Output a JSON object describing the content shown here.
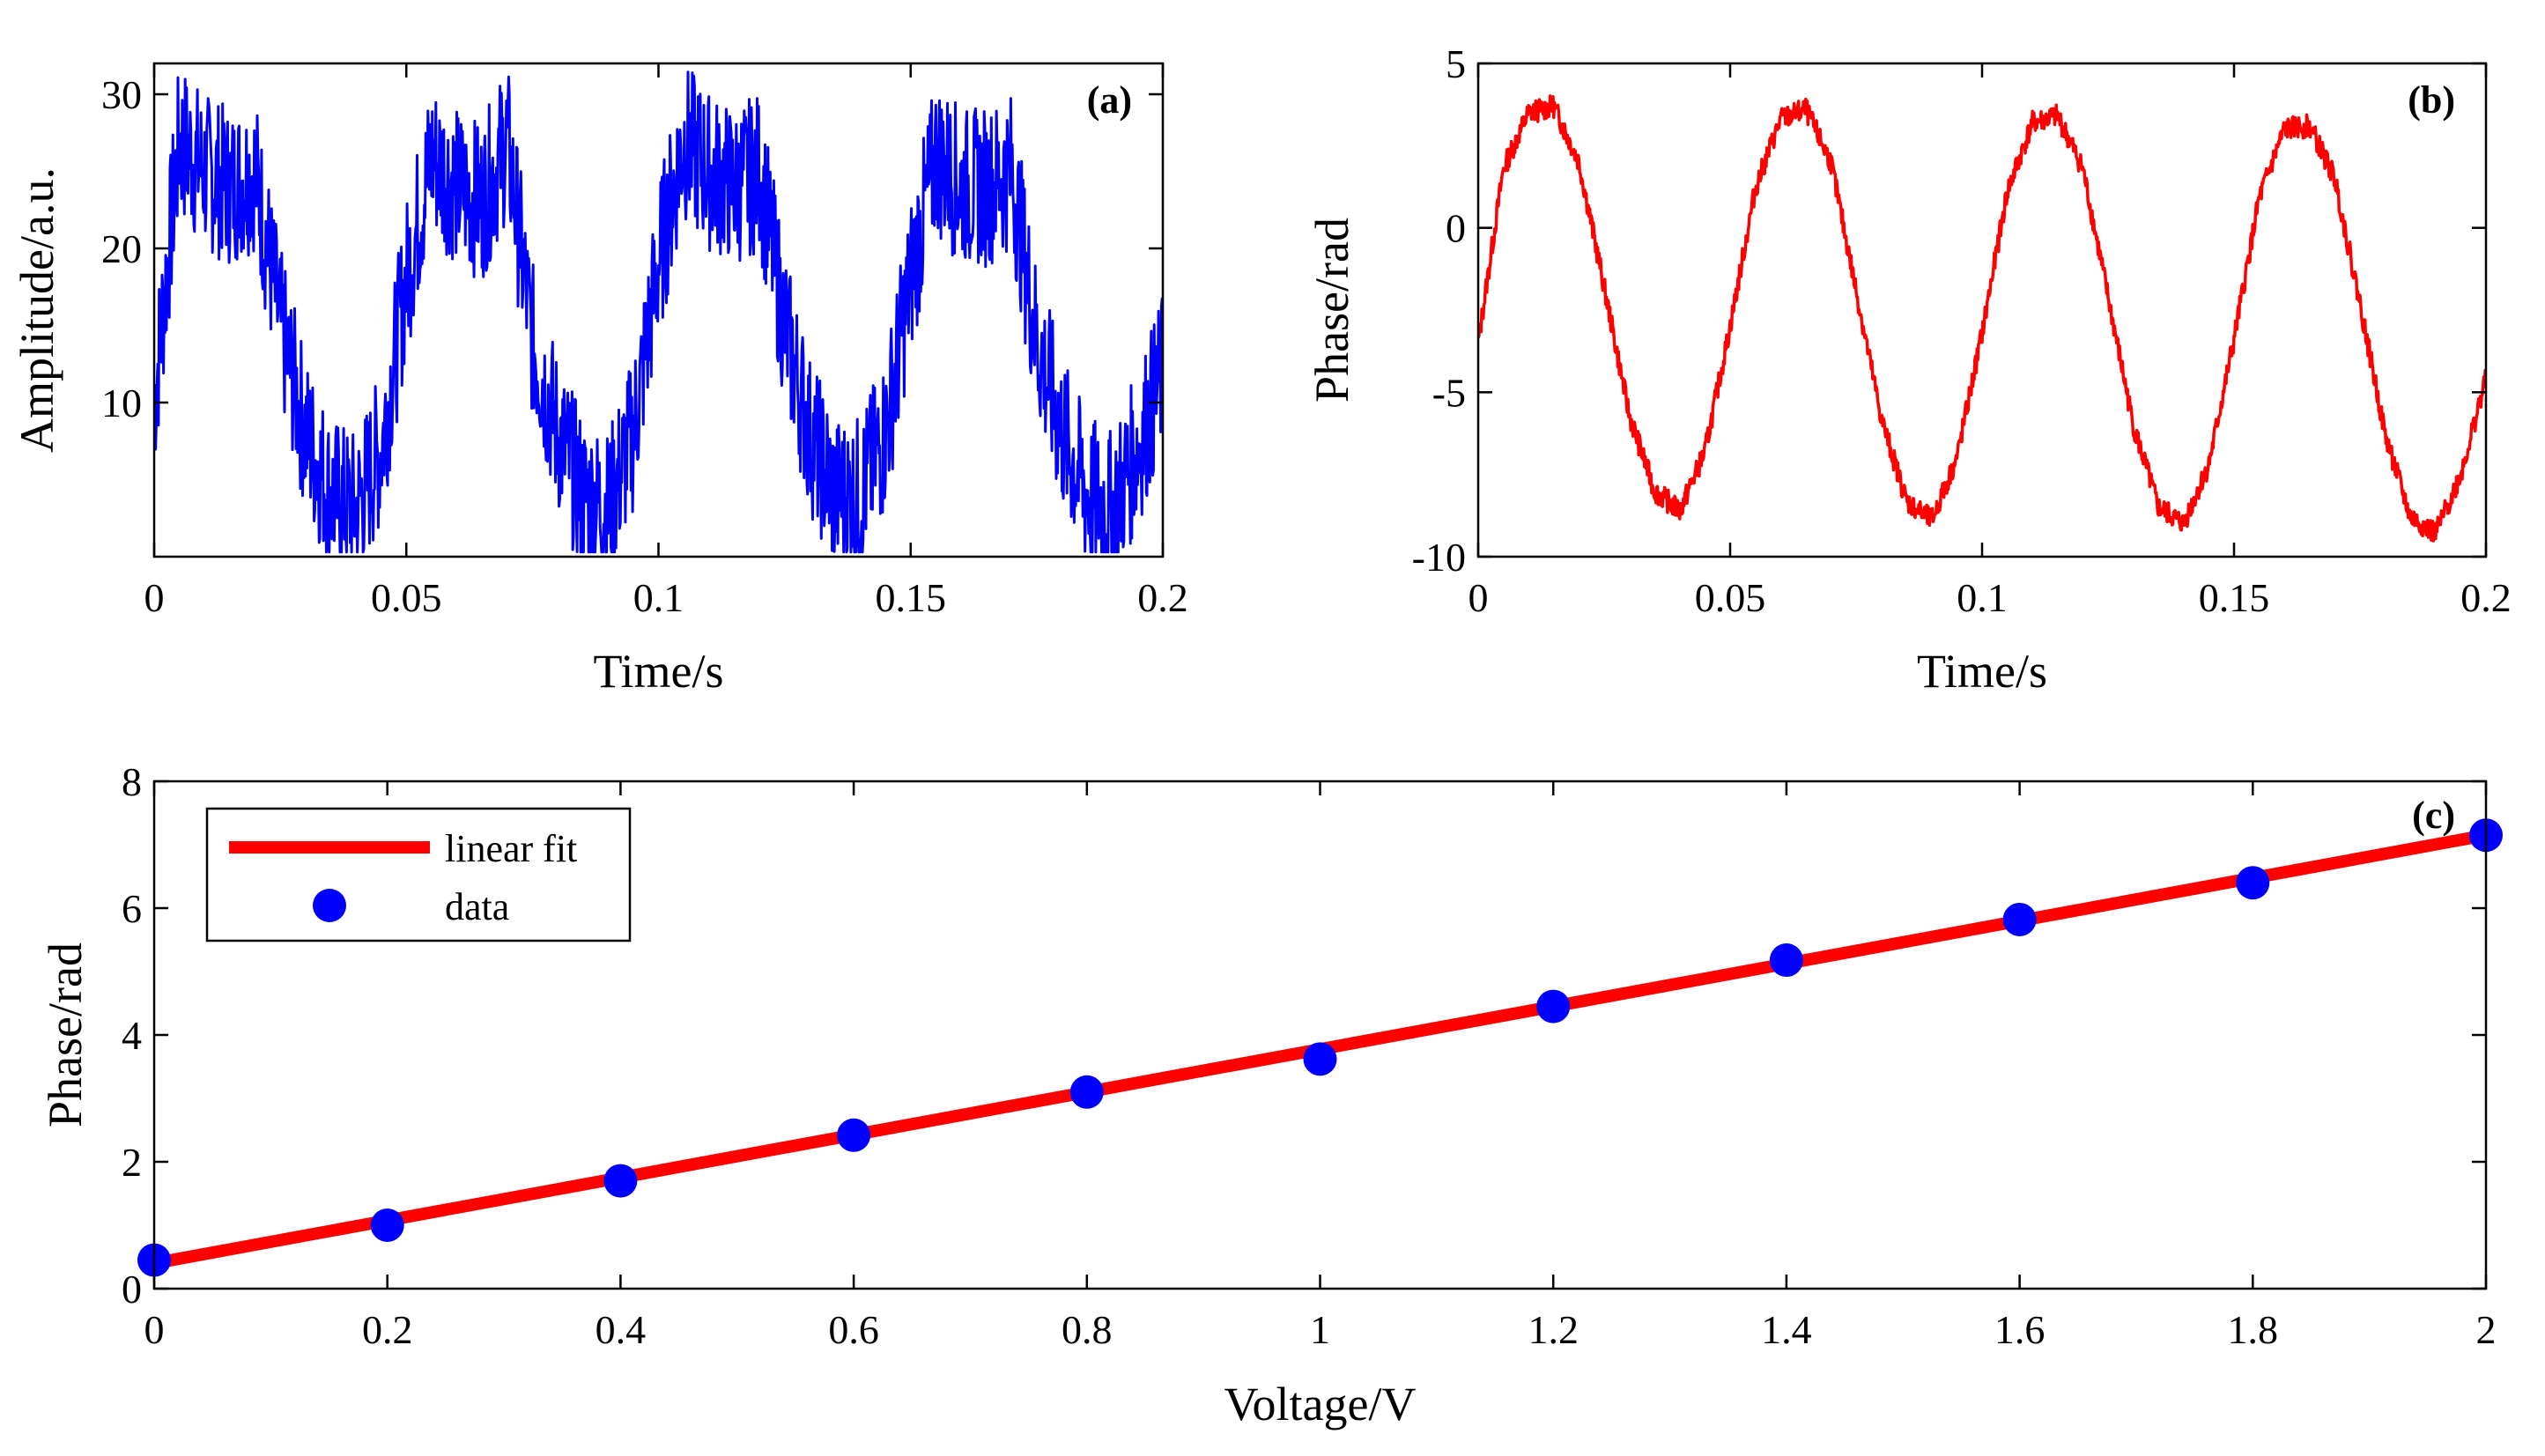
{
  "colors": {
    "blue": "#0000ff",
    "red": "#ff0000",
    "axis": "#000000"
  },
  "chart_data": [
    {
      "id": "a",
      "type": "line",
      "panel_label": "(a)",
      "xlabel": "Time/s",
      "ylabel": "Amplitude/a.u.",
      "xlim": [
        0,
        0.2
      ],
      "ylim": [
        0,
        32
      ],
      "xticks": [
        0,
        0.05,
        0.1,
        0.15,
        0.2
      ],
      "xtick_labels": [
        "0",
        "0.05",
        "0.1",
        "0.15",
        "0.2"
      ],
      "yticks": [
        10,
        20,
        30
      ],
      "ytick_labels": [
        "10",
        "20",
        "30"
      ],
      "series": [
        {
          "name": "amplitude",
          "color": "#0000ff",
          "description": "noisy periodic square-like signal, period 0.05 s",
          "x": [
            0,
            0.005,
            0.01,
            0.015,
            0.02,
            0.025,
            0.03,
            0.035,
            0.04,
            0.045,
            0.05,
            0.055,
            0.06,
            0.065,
            0.07,
            0.075,
            0.08,
            0.085,
            0.09,
            0.095,
            0.1,
            0.105,
            0.11,
            0.115,
            0.12,
            0.125,
            0.13,
            0.135,
            0.14,
            0.145,
            0.15,
            0.155,
            0.16,
            0.165,
            0.17,
            0.175,
            0.18,
            0.185,
            0.19,
            0.195,
            0.2
          ],
          "values": [
            10,
            27,
            25,
            24,
            25,
            15,
            8,
            4,
            3,
            7,
            18,
            26,
            24,
            23,
            27,
            14,
            8,
            4,
            3,
            8,
            19,
            27,
            25,
            24,
            25,
            15,
            8,
            4,
            4,
            8,
            18,
            26,
            24,
            24,
            25,
            14,
            8,
            4,
            3,
            7,
            12
          ]
        }
      ]
    },
    {
      "id": "b",
      "type": "line",
      "panel_label": "(b)",
      "xlabel": "Time/s",
      "ylabel": "Phase/rad",
      "xlim": [
        0,
        0.2
      ],
      "ylim": [
        -10,
        5
      ],
      "xticks": [
        0,
        0.05,
        0.1,
        0.15,
        0.2
      ],
      "xtick_labels": [
        "0",
        "0.05",
        "0.1",
        "0.15",
        "0.2"
      ],
      "yticks": [
        -10,
        -5,
        0,
        5
      ],
      "ytick_labels": [
        "-10",
        "-5",
        "0",
        "5"
      ],
      "series": [
        {
          "name": "phase",
          "color": "#ff0000",
          "description": "sinusoid, period 0.05 s, from about +3.8 to -8.8 rad",
          "x": [
            0,
            0.005,
            0.01,
            0.015,
            0.02,
            0.025,
            0.03,
            0.035,
            0.04,
            0.045,
            0.05,
            0.055,
            0.06,
            0.065,
            0.07,
            0.075,
            0.08,
            0.085,
            0.09,
            0.095,
            0.1,
            0.105,
            0.11,
            0.115,
            0.12,
            0.125,
            0.13,
            0.135,
            0.14,
            0.145,
            0.15,
            0.155,
            0.16,
            0.165,
            0.17,
            0.175,
            0.18,
            0.185,
            0.19,
            0.195,
            0.2
          ],
          "values": [
            -3.5,
            1.8,
            3.5,
            3.7,
            2.0,
            -1.8,
            -5.7,
            -8.0,
            -8.6,
            -6.8,
            -3.0,
            1.2,
            3.3,
            3.6,
            2.0,
            -1.9,
            -5.8,
            -8.3,
            -8.9,
            -7.0,
            -3.2,
            1.1,
            3.2,
            3.4,
            1.8,
            -2.1,
            -6.0,
            -8.5,
            -9.0,
            -7.2,
            -3.4,
            0.9,
            3.0,
            3.1,
            1.5,
            -2.3,
            -6.3,
            -8.8,
            -9.3,
            -7.5,
            -4.6
          ]
        }
      ]
    },
    {
      "id": "c",
      "type": "scatter",
      "panel_label": "(c)",
      "xlabel": "Voltage/V",
      "ylabel": "Phase/rad",
      "xlim": [
        0,
        2
      ],
      "ylim": [
        0,
        8
      ],
      "xticks": [
        0,
        0.2,
        0.4,
        0.6,
        0.8,
        1,
        1.2,
        1.4,
        1.6,
        1.8,
        2
      ],
      "xtick_labels": [
        "0",
        "0.2",
        "0.4",
        "0.6",
        "0.8",
        "1",
        "1.2",
        "1.4",
        "1.6",
        "1.8",
        "2"
      ],
      "yticks": [
        0,
        2,
        4,
        6,
        8
      ],
      "ytick_labels": [
        "0",
        "2",
        "4",
        "6",
        "8"
      ],
      "legend": {
        "position": "top-left",
        "entries": [
          "linear fit",
          "data"
        ]
      },
      "series": [
        {
          "name": "linear fit",
          "type": "line",
          "color": "#ff0000",
          "x": [
            0,
            2
          ],
          "values": [
            0.4,
            7.15
          ]
        },
        {
          "name": "data",
          "type": "scatter",
          "color": "#0000ff",
          "x": [
            0,
            0.2,
            0.4,
            0.6,
            0.8,
            1,
            1.2,
            1.4,
            1.6,
            1.8,
            2
          ],
          "values": [
            0.45,
            1.0,
            1.7,
            2.42,
            3.1,
            3.62,
            4.45,
            5.18,
            5.82,
            6.4,
            7.15
          ]
        }
      ]
    }
  ]
}
